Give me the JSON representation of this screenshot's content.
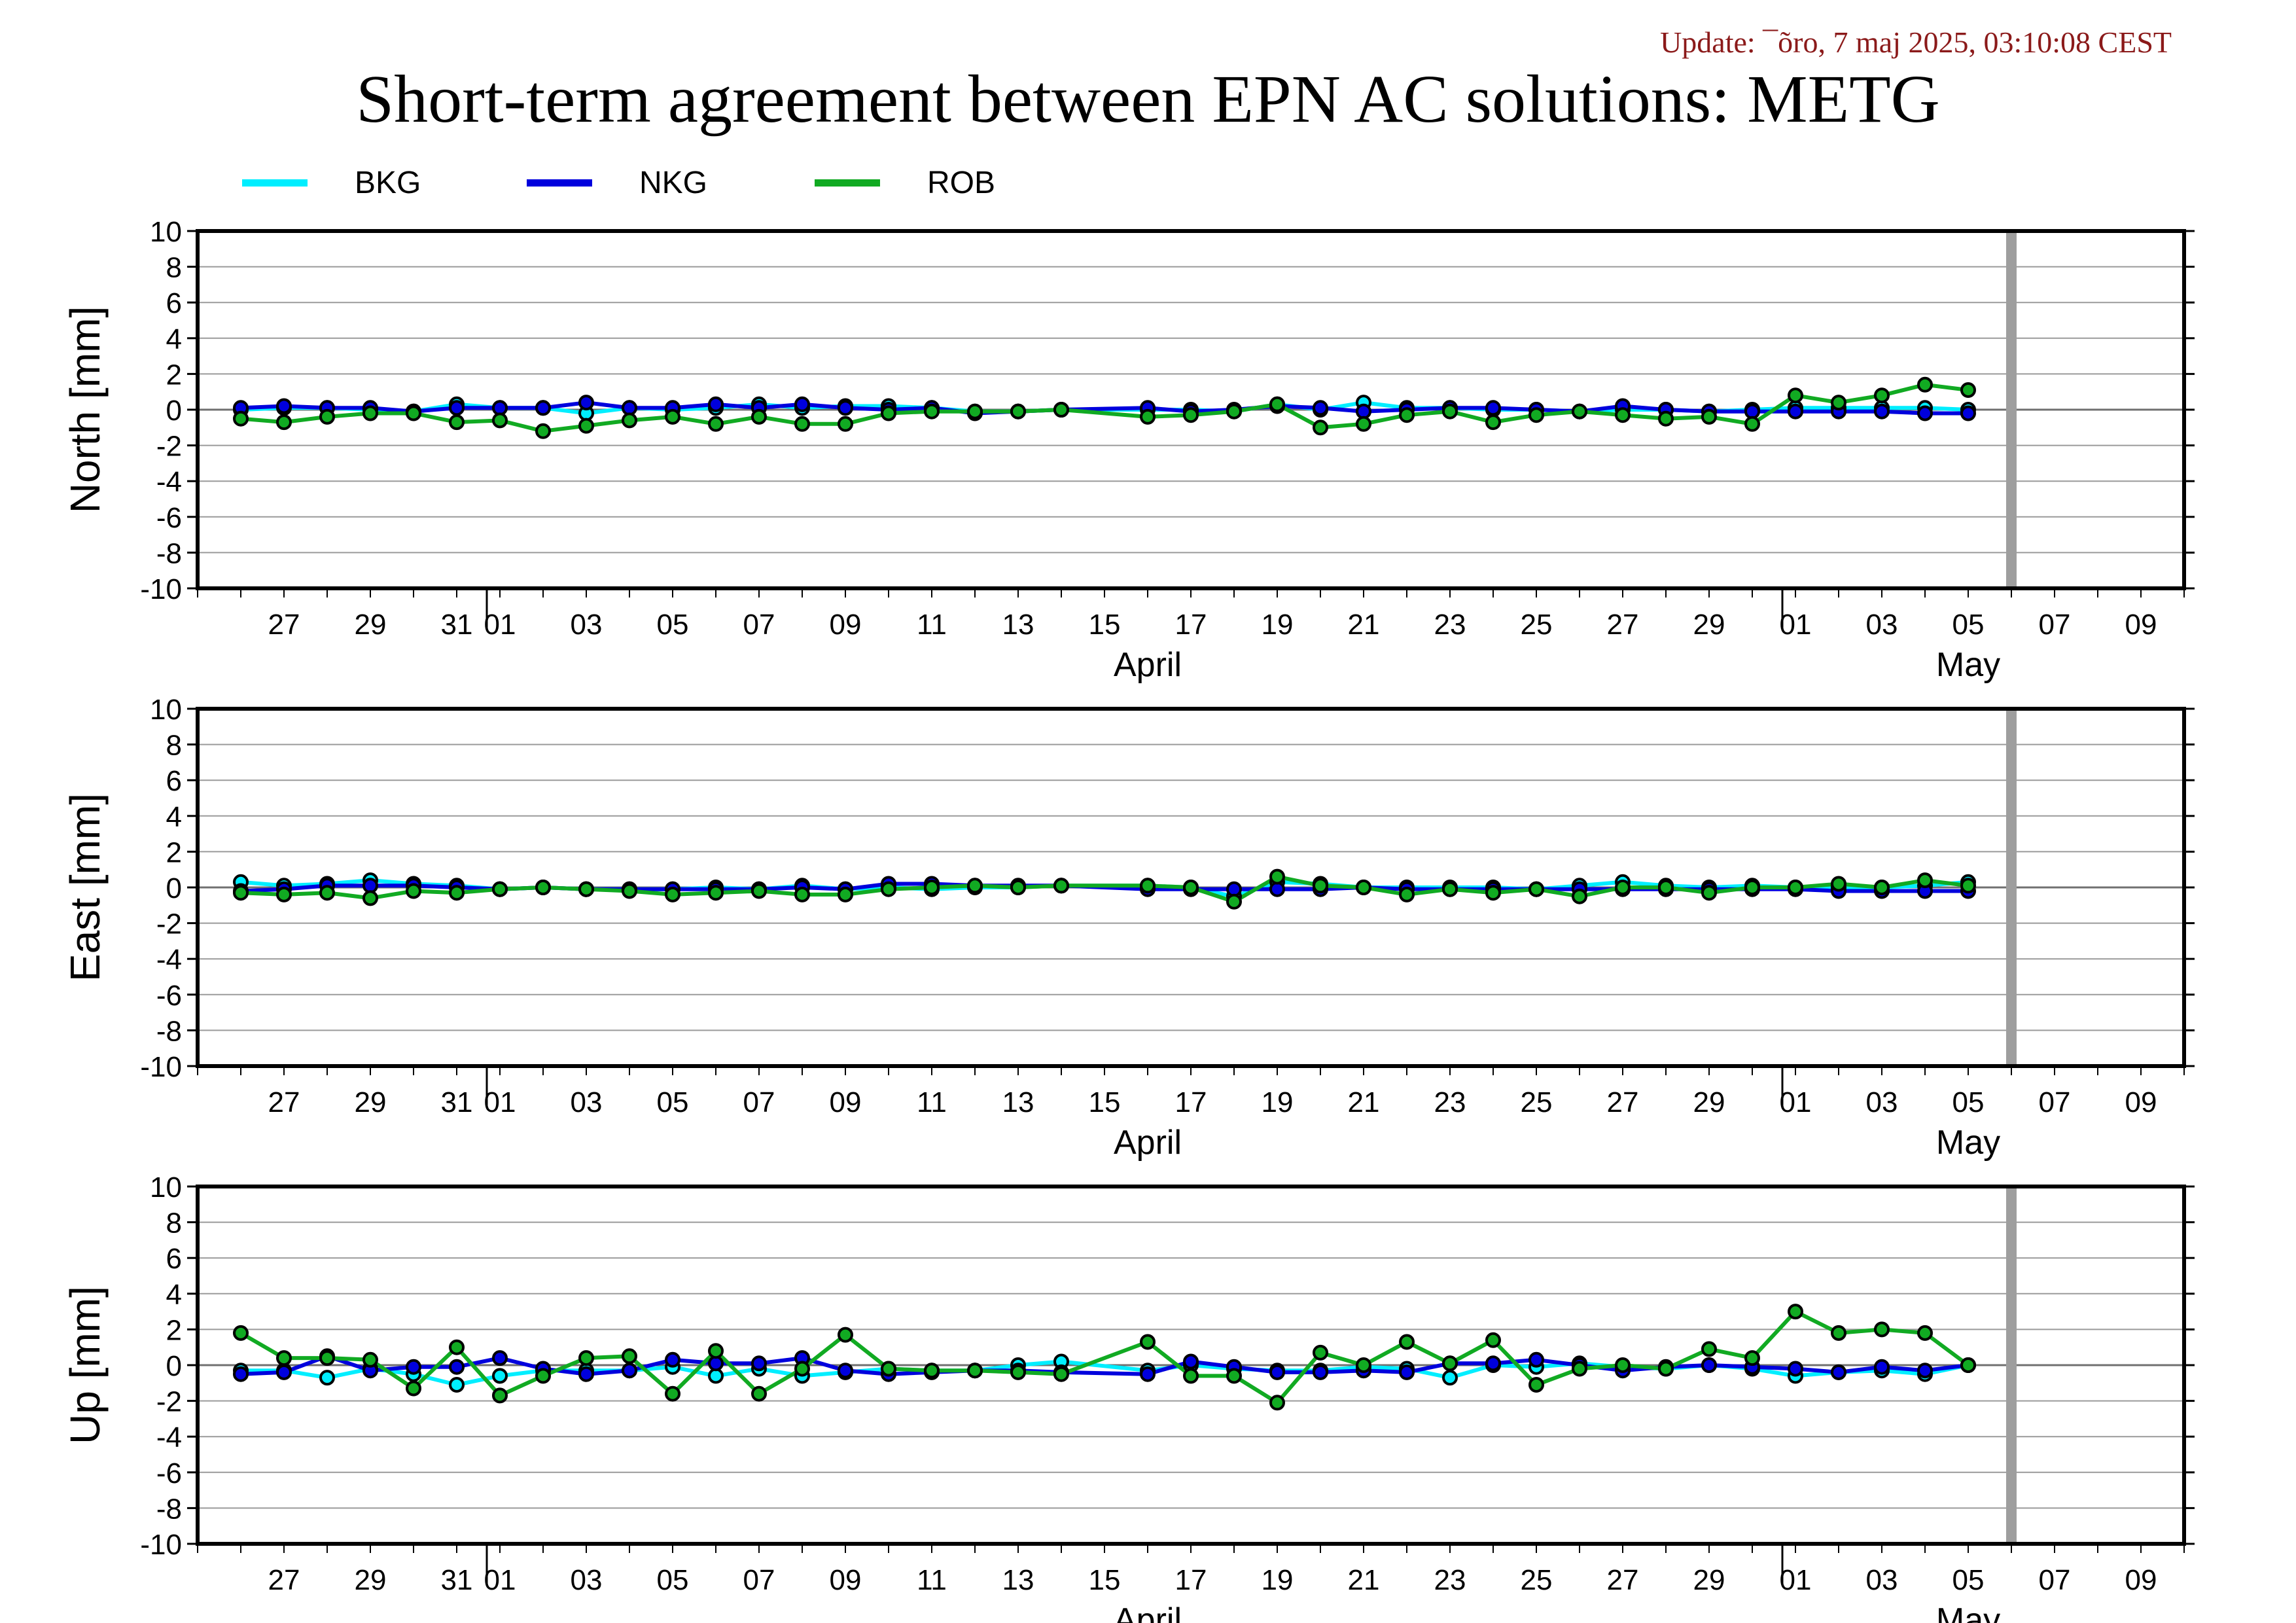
{
  "header": {
    "update": "Update: ¯õro, 7 maj 2025, 03:10:08 CEST",
    "title": "Short-term agreement between EPN AC solutions: METG"
  },
  "colors": {
    "BKG": "#00eeff",
    "NKG": "#0000dd",
    "ROB": "#11aa22",
    "data_gap": "#9e9e9e"
  },
  "legend": [
    {
      "name": "BKG",
      "color": "#00eeff"
    },
    {
      "name": "NKG",
      "color": "#0000dd"
    },
    {
      "name": "ROB",
      "color": "#11aa22"
    }
  ],
  "chart_data": {
    "type": "line",
    "x_unit": "date",
    "x_range": [
      "2025-03-25",
      "2025-05-10"
    ],
    "x_tick_labels": [
      "27",
      "29",
      "31",
      "01",
      "03",
      "05",
      "07",
      "09",
      "11",
      "13",
      "15",
      "17",
      "19",
      "21",
      "23",
      "25",
      "27",
      "29",
      "01",
      "03",
      "05",
      "07",
      "09"
    ],
    "x_tick_dates": [
      "2025-03-27",
      "2025-03-29",
      "2025-03-31",
      "2025-04-01",
      "2025-04-03",
      "2025-04-05",
      "2025-04-07",
      "2025-04-09",
      "2025-04-11",
      "2025-04-13",
      "2025-04-15",
      "2025-04-17",
      "2025-04-19",
      "2025-04-21",
      "2025-04-23",
      "2025-04-25",
      "2025-04-27",
      "2025-04-29",
      "2025-05-01",
      "2025-05-03",
      "2025-05-05",
      "2025-05-07",
      "2025-05-09"
    ],
    "month_labels": [
      {
        "label": "April",
        "date": "2025-04-16"
      },
      {
        "label": "May",
        "date": "2025-05-05"
      }
    ],
    "gap_date": "2025-05-06",
    "y_ticks": [
      10,
      8,
      6,
      4,
      2,
      0,
      -2,
      -4,
      -6,
      -8,
      -10
    ],
    "ylim": [
      -10,
      10
    ],
    "grid": true,
    "legend_position": "top-left",
    "dates": [
      "2025-03-26",
      "2025-03-27",
      "2025-03-28",
      "2025-03-29",
      "2025-03-30",
      "2025-03-31",
      "2025-04-01",
      "2025-04-02",
      "2025-04-03",
      "2025-04-04",
      "2025-04-05",
      "2025-04-06",
      "2025-04-07",
      "2025-04-08",
      "2025-04-09",
      "2025-04-10",
      "2025-04-11",
      "2025-04-12",
      "2025-04-13",
      "2025-04-14",
      "2025-04-16",
      "2025-04-17",
      "2025-04-18",
      "2025-04-19",
      "2025-04-20",
      "2025-04-21",
      "2025-04-22",
      "2025-04-23",
      "2025-04-24",
      "2025-04-25",
      "2025-04-26",
      "2025-04-27",
      "2025-04-28",
      "2025-04-29",
      "2025-04-30",
      "2025-05-01",
      "2025-05-02",
      "2025-05-03",
      "2025-05-04",
      "2025-05-05"
    ],
    "panels": [
      {
        "ylabel": "North [mm]",
        "series": [
          {
            "name": "BKG",
            "values": [
              0.0,
              0.1,
              0.1,
              0.0,
              -0.1,
              0.3,
              0.1,
              0.1,
              -0.2,
              0.1,
              0.0,
              0.1,
              0.3,
              0.1,
              0.2,
              0.2,
              0.1,
              -0.1,
              -0.1,
              0.0,
              0.0,
              0.0,
              -0.1,
              0.3,
              0.0,
              0.4,
              0.1,
              0.1,
              0.0,
              0.0,
              -0.1,
              0.0,
              0.0,
              -0.1,
              0.0,
              0.1,
              0.1,
              0.1,
              0.1,
              0.0
            ]
          },
          {
            "name": "NKG",
            "values": [
              0.1,
              0.2,
              0.1,
              0.1,
              -0.1,
              0.1,
              0.1,
              0.1,
              0.4,
              0.1,
              0.1,
              0.3,
              0.1,
              0.3,
              0.1,
              0.0,
              0.1,
              -0.2,
              -0.1,
              0.0,
              0.1,
              -0.1,
              0.0,
              0.2,
              0.1,
              -0.1,
              0.0,
              0.1,
              0.1,
              0.0,
              -0.1,
              0.2,
              0.0,
              -0.1,
              -0.1,
              -0.1,
              -0.1,
              -0.1,
              -0.2,
              -0.2
            ]
          },
          {
            "name": "ROB",
            "values": [
              -0.5,
              -0.7,
              -0.4,
              -0.2,
              -0.2,
              -0.7,
              -0.6,
              -1.2,
              -0.9,
              -0.6,
              -0.4,
              -0.8,
              -0.4,
              -0.8,
              -0.8,
              -0.2,
              -0.1,
              -0.1,
              -0.1,
              0.0,
              -0.4,
              -0.3,
              -0.1,
              0.3,
              -1.0,
              -0.8,
              -0.3,
              -0.1,
              -0.7,
              -0.3,
              -0.1,
              -0.3,
              -0.5,
              -0.4,
              -0.8,
              0.8,
              0.4,
              0.8,
              1.4,
              1.1
            ]
          }
        ]
      },
      {
        "ylabel": "East [mm]",
        "series": [
          {
            "name": "BKG",
            "values": [
              0.3,
              0.1,
              0.2,
              0.4,
              0.2,
              0.1,
              -0.1,
              0.0,
              -0.1,
              -0.1,
              -0.1,
              0.0,
              -0.1,
              0.1,
              -0.1,
              0.0,
              -0.1,
              0.0,
              0.0,
              0.1,
              0.1,
              0.0,
              -0.5,
              0.3,
              0.2,
              0.0,
              0.0,
              0.0,
              0.0,
              -0.1,
              0.1,
              0.3,
              0.1,
              0.0,
              0.1,
              0.0,
              0.0,
              0.0,
              0.1,
              0.3
            ]
          },
          {
            "name": "NKG",
            "values": [
              -0.2,
              -0.1,
              0.1,
              0.1,
              0.1,
              0.0,
              -0.1,
              0.0,
              -0.1,
              -0.1,
              -0.1,
              -0.1,
              -0.1,
              0.0,
              -0.1,
              0.2,
              0.2,
              0.1,
              0.1,
              0.1,
              -0.1,
              -0.1,
              -0.1,
              -0.1,
              -0.1,
              0.0,
              -0.1,
              -0.1,
              -0.1,
              -0.1,
              -0.1,
              -0.1,
              -0.1,
              -0.1,
              -0.1,
              -0.1,
              -0.2,
              -0.2,
              -0.2,
              -0.2
            ]
          },
          {
            "name": "ROB",
            "values": [
              -0.3,
              -0.4,
              -0.3,
              -0.6,
              -0.2,
              -0.3,
              -0.1,
              0.0,
              -0.1,
              -0.2,
              -0.4,
              -0.3,
              -0.2,
              -0.4,
              -0.4,
              -0.1,
              0.0,
              0.1,
              0.0,
              0.1,
              0.1,
              0.0,
              -0.8,
              0.6,
              0.1,
              0.0,
              -0.4,
              -0.1,
              -0.3,
              -0.1,
              -0.5,
              0.0,
              0.0,
              -0.3,
              0.0,
              0.0,
              0.2,
              0.0,
              0.4,
              0.1
            ]
          }
        ]
      },
      {
        "ylabel": "Up [mm]",
        "series": [
          {
            "name": "BKG",
            "values": [
              -0.3,
              -0.3,
              -0.7,
              -0.2,
              -0.5,
              -1.1,
              -0.6,
              -0.3,
              -0.3,
              -0.3,
              -0.1,
              -0.6,
              -0.2,
              -0.6,
              -0.4,
              -0.2,
              -0.3,
              -0.3,
              0.0,
              0.2,
              -0.3,
              0.0,
              -0.2,
              -0.3,
              -0.3,
              -0.1,
              -0.2,
              -0.7,
              0.0,
              -0.1,
              0.1,
              -0.1,
              -0.2,
              0.0,
              -0.2,
              -0.6,
              -0.4,
              -0.3,
              -0.5,
              0.0
            ]
          },
          {
            "name": "NKG",
            "values": [
              -0.5,
              -0.4,
              0.5,
              -0.3,
              -0.1,
              -0.1,
              0.4,
              -0.2,
              -0.5,
              -0.3,
              0.3,
              0.1,
              0.1,
              0.4,
              -0.3,
              -0.5,
              -0.4,
              -0.3,
              -0.3,
              -0.4,
              -0.5,
              0.2,
              -0.1,
              -0.4,
              -0.4,
              -0.3,
              -0.4,
              0.1,
              0.1,
              0.3,
              0.0,
              -0.3,
              -0.1,
              0.0,
              -0.1,
              -0.2,
              -0.4,
              -0.1,
              -0.3,
              0.0
            ]
          },
          {
            "name": "ROB",
            "values": [
              1.8,
              0.4,
              0.4,
              0.3,
              -1.3,
              1.0,
              -1.7,
              -0.6,
              0.4,
              0.5,
              -1.6,
              0.8,
              -1.6,
              -0.2,
              1.7,
              -0.2,
              -0.3,
              -0.3,
              -0.4,
              -0.5,
              1.3,
              -0.6,
              -0.6,
              -2.1,
              0.7,
              0.0,
              1.3,
              0.1,
              1.4,
              -1.1,
              -0.2,
              0.0,
              -0.2,
              0.9,
              0.4,
              3.0,
              1.8,
              2.0,
              1.8,
              0.0
            ]
          }
        ]
      }
    ]
  }
}
